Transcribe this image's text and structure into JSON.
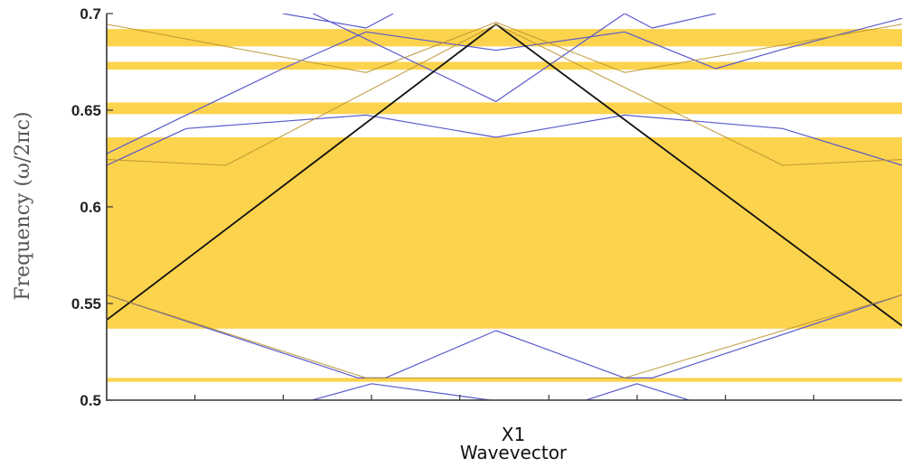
{
  "chart_data": {
    "type": "line",
    "title": "",
    "xlabel": "Wavevector",
    "ylabel": "Frequency (ω/2πc)",
    "x_categories": [
      "X1"
    ],
    "xlim": [
      0,
      1
    ],
    "ylim": [
      0.5,
      0.7
    ],
    "y_ticks": [
      {
        "value": 0.5,
        "label": "0.5"
      },
      {
        "value": 0.55,
        "label": "0.55"
      },
      {
        "value": 0.6,
        "label": "0.6"
      },
      {
        "value": 0.65,
        "label": "0.65"
      },
      {
        "value": 0.7,
        "label": "0.7"
      }
    ],
    "x_minor_ticks": [
      0.111,
      0.222,
      0.333,
      0.444,
      0.556,
      0.667,
      0.778,
      0.889
    ],
    "grid": false,
    "colors": {
      "band_fill": "#fcd34d",
      "blue_line": "#5a5acd",
      "black_line": "#111111",
      "ochre_line": "#b8922a"
    },
    "bands": [
      {
        "y0": 0.5095,
        "y1": 0.5115
      },
      {
        "y0": 0.537,
        "y1": 0.636
      },
      {
        "y0": 0.648,
        "y1": 0.654
      },
      {
        "y0": 0.671,
        "y1": 0.675
      },
      {
        "y0": 0.683,
        "y1": 0.692
      }
    ],
    "series": [
      {
        "color": "blue_line",
        "x": [
          0.2495,
          0.3333,
          0.4995
        ],
        "y": [
          0.499,
          0.5085,
          0.499
        ]
      },
      {
        "color": "blue_line",
        "x": [
          0.595,
          0.6667,
          0.74
        ],
        "y": [
          0.499,
          0.5085,
          0.499
        ]
      },
      {
        "color": "blue_line",
        "x": [
          0,
          0.3162,
          0.3503,
          0.4895,
          0.6513,
          0.6859,
          1.0
        ],
        "y": [
          0.5545,
          0.5115,
          0.5115,
          0.536,
          0.5115,
          0.5115,
          0.5545
        ]
      },
      {
        "color": "blue_line",
        "x": [
          0,
          0.1,
          0.3263,
          0.4895,
          0.6513,
          0.85,
          1.0
        ],
        "y": [
          0.6215,
          0.6405,
          0.6475,
          0.636,
          0.6475,
          0.6405,
          0.6215
        ]
      },
      {
        "color": "blue_line",
        "x": [
          0.2595,
          0.4895,
          0.6513
        ],
        "y": [
          0.7,
          0.6545,
          0.7
        ]
      },
      {
        "color": "blue_line",
        "x": [
          0.3263,
          0.4895,
          0.6513
        ],
        "y": [
          0.6905,
          0.681,
          0.6905
        ]
      },
      {
        "color": "blue_line",
        "x": [
          0.2214,
          0.3263,
          0.3604
        ],
        "y": [
          0.7,
          0.6925,
          0.7
        ]
      },
      {
        "color": "blue_line",
        "x": [
          0.6513,
          0.6859,
          0.7658
        ],
        "y": [
          0.7,
          0.6925,
          0.7
        ]
      },
      {
        "color": "blue_line",
        "x": [
          0.3263,
          0.2214,
          0.1,
          0.0
        ],
        "y": [
          0.6905,
          0.6715,
          0.6475,
          0.6275
        ]
      },
      {
        "color": "blue_line",
        "x": [
          0.6513,
          0.7658,
          0.85,
          1.0
        ],
        "y": [
          0.6905,
          0.6715,
          0.6815,
          0.6975
        ]
      },
      {
        "color": "black_line",
        "x": [
          0,
          0.4895,
          1.0
        ],
        "y": [
          0.5415,
          0.6945,
          0.5385
        ]
      },
      {
        "color": "ochre_line",
        "x": [
          0,
          0.3263,
          0.4895,
          0.6513,
          1.0
        ],
        "y": [
          0.6945,
          0.6695,
          0.6955,
          0.6695,
          0.6945
        ]
      },
      {
        "color": "ochre_line",
        "x": [
          0,
          0.15,
          0.4895,
          0.85,
          1.0
        ],
        "y": [
          0.6245,
          0.6215,
          0.6945,
          0.6215,
          0.6245
        ]
      },
      {
        "color": "ochre_line",
        "x": [
          0,
          0.3263,
          0.6513,
          1.0
        ],
        "y": [
          0.5545,
          0.5115,
          0.5115,
          0.5545
        ]
      }
    ]
  }
}
